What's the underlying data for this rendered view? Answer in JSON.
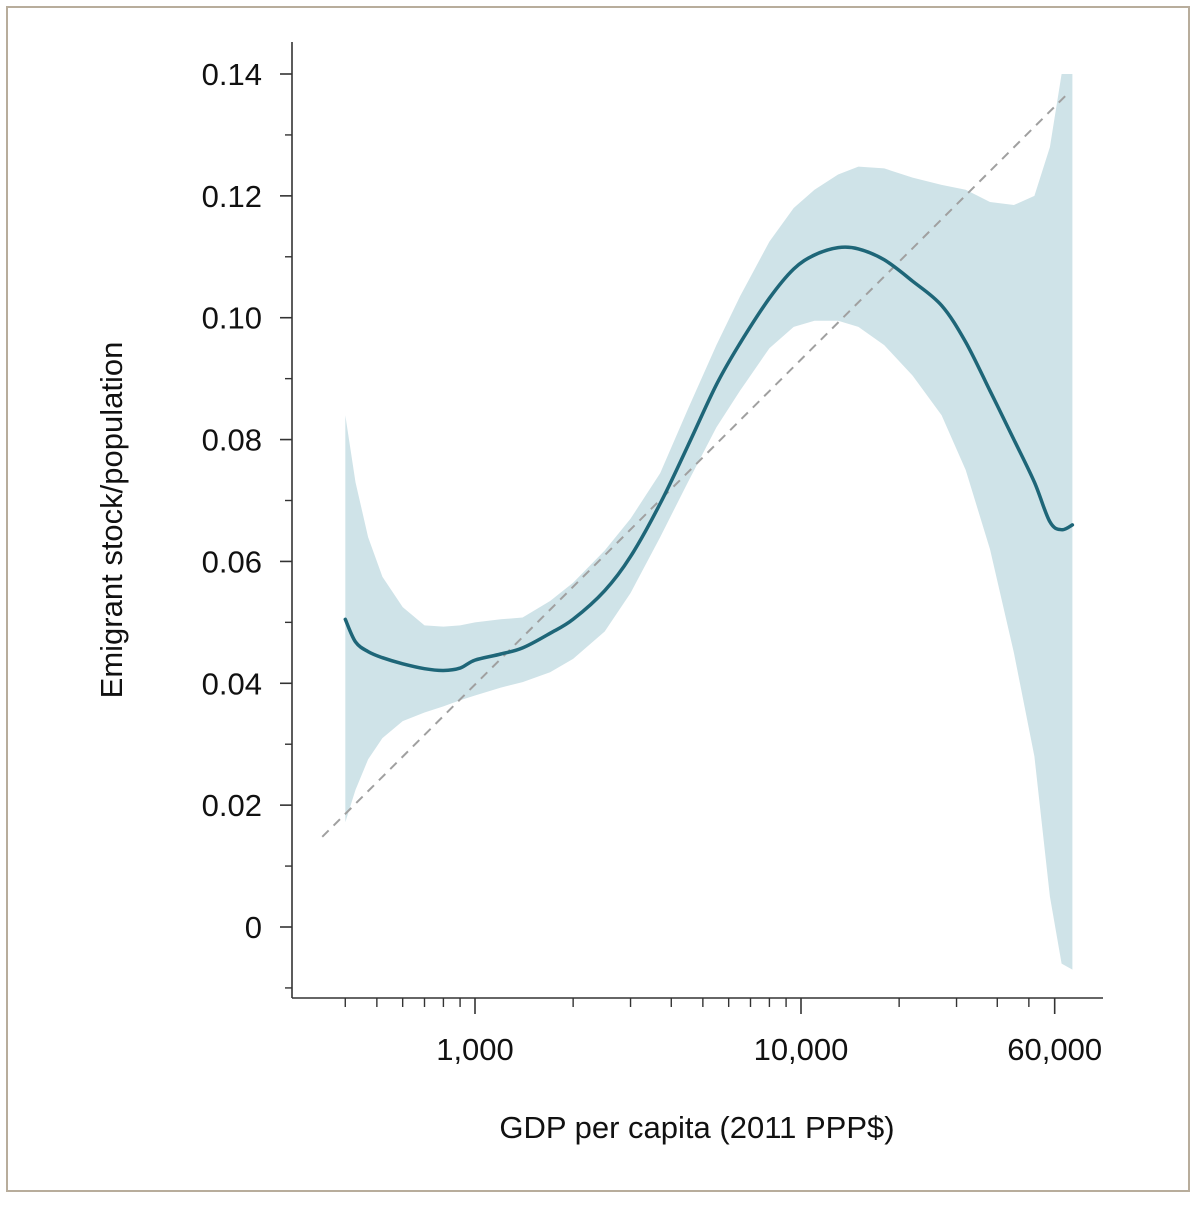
{
  "chart_data": {
    "type": "line",
    "title": "",
    "xlabel": "GDP per capita (2011 PPP$)",
    "ylabel": "Emigrant stock/population",
    "x_scale": "log",
    "xlim": [
      300,
      80000
    ],
    "ylim": [
      -0.012,
      0.145
    ],
    "x_ticks": [
      {
        "value": 1000,
        "label": "1,000"
      },
      {
        "value": 10000,
        "label": "10,000"
      },
      {
        "value": 60000,
        "label": "60,000"
      }
    ],
    "y_ticks": [
      {
        "value": 0,
        "label": "0"
      },
      {
        "value": 0.02,
        "label": "0.02"
      },
      {
        "value": 0.04,
        "label": "0.04"
      },
      {
        "value": 0.06,
        "label": "0.06"
      },
      {
        "value": 0.08,
        "label": "0.08"
      },
      {
        "value": 0.1,
        "label": "0.10"
      },
      {
        "value": 0.12,
        "label": "0.12"
      },
      {
        "value": 0.14,
        "label": "0.14"
      }
    ],
    "grid": false,
    "legend": "none",
    "series": [
      {
        "style": "line",
        "color": "#1e6678",
        "x": [
          400,
          430,
          470,
          520,
          600,
          700,
          800,
          900,
          1000,
          1200,
          1400,
          1700,
          2000,
          2500,
          3000,
          3700,
          4500,
          5500,
          6500,
          8000,
          9500,
          11000,
          13000,
          15000,
          18000,
          22000,
          27000,
          32000,
          38000,
          45000,
          52000,
          58000,
          63000,
          68000
        ],
        "y": [
          0.0505,
          0.0468,
          0.0452,
          0.0442,
          0.0432,
          0.0424,
          0.0421,
          0.0425,
          0.0438,
          0.0448,
          0.0458,
          0.0482,
          0.0505,
          0.0552,
          0.0608,
          0.0695,
          0.079,
          0.089,
          0.0958,
          0.1032,
          0.108,
          0.1103,
          0.1115,
          0.1113,
          0.1095,
          0.106,
          0.102,
          0.096,
          0.088,
          0.08,
          0.073,
          0.0665,
          0.0652,
          0.066
        ]
      },
      {
        "style": "band",
        "color": "#cfe3e8",
        "x": [
          400,
          430,
          470,
          520,
          600,
          700,
          800,
          900,
          1000,
          1200,
          1400,
          1700,
          2000,
          2500,
          3000,
          3700,
          4500,
          5500,
          6500,
          8000,
          9500,
          11000,
          13000,
          15000,
          18000,
          22000,
          27000,
          32000,
          38000,
          45000,
          52000,
          58000,
          63000,
          68000
        ],
        "lower": [
          0.0172,
          0.0225,
          0.0275,
          0.031,
          0.0338,
          0.0352,
          0.0362,
          0.0372,
          0.038,
          0.0393,
          0.0402,
          0.0418,
          0.044,
          0.0485,
          0.0548,
          0.064,
          0.073,
          0.082,
          0.088,
          0.095,
          0.0985,
          0.0995,
          0.0995,
          0.0985,
          0.0955,
          0.0905,
          0.084,
          0.075,
          0.062,
          0.045,
          0.028,
          0.005,
          -0.006,
          -0.007
        ],
        "upper": [
          0.084,
          0.073,
          0.064,
          0.0575,
          0.0525,
          0.0495,
          0.0493,
          0.0495,
          0.05,
          0.0505,
          0.0508,
          0.0535,
          0.0565,
          0.0618,
          0.067,
          0.0745,
          0.085,
          0.0955,
          0.1035,
          0.1125,
          0.118,
          0.121,
          0.1235,
          0.1248,
          0.1245,
          0.123,
          0.1218,
          0.121,
          0.119,
          0.1185,
          0.12,
          0.128,
          0.14,
          0.14
        ]
      },
      {
        "style": "dashed-fit",
        "color": "#a0a0a0",
        "x": [
          340,
          65000
        ],
        "y": [
          0.0148,
          0.1365
        ]
      }
    ]
  }
}
